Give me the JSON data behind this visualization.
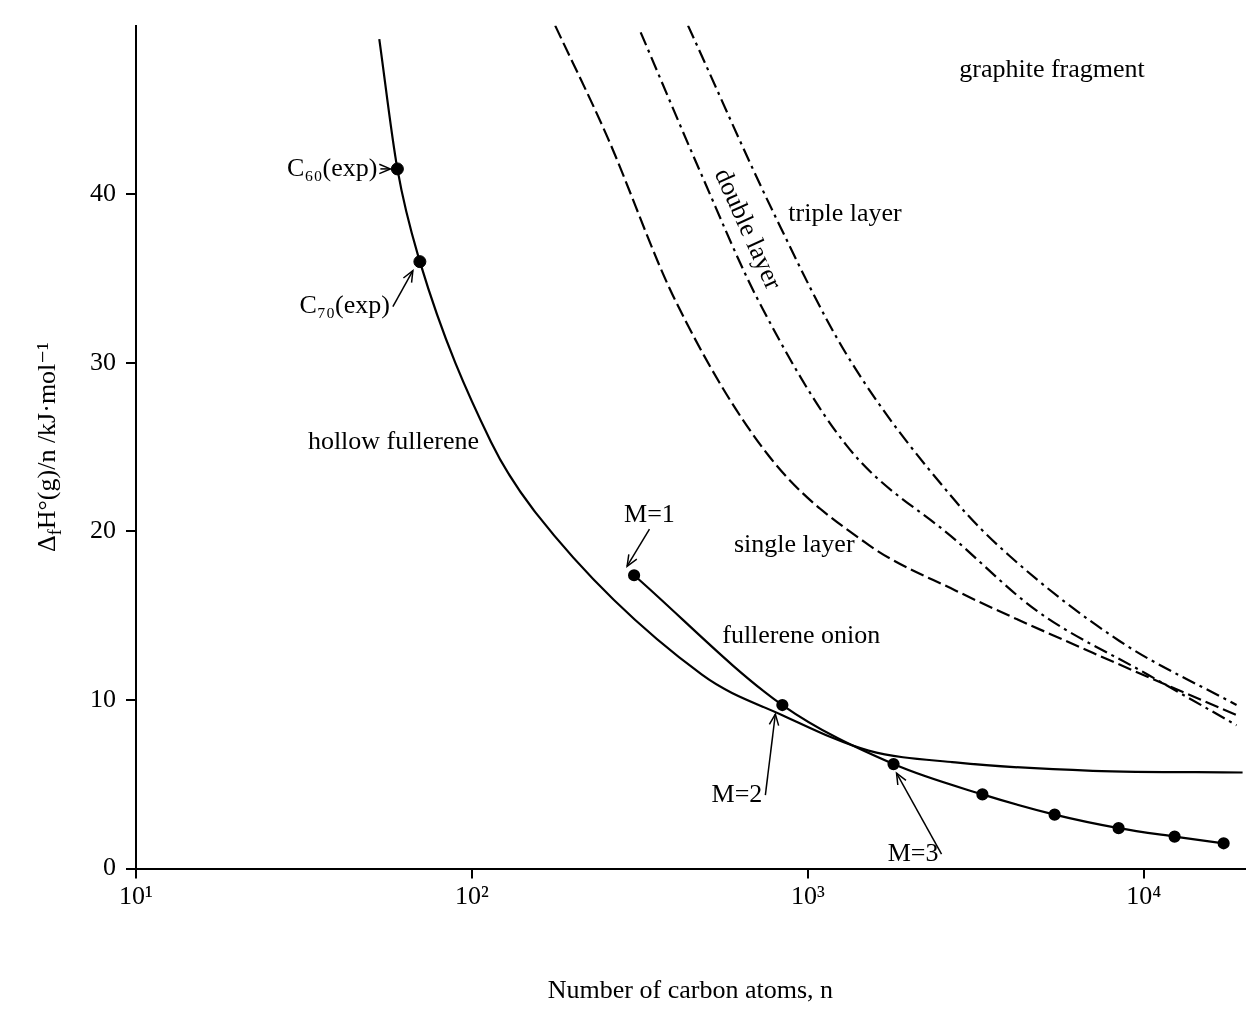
{
  "chart_data": {
    "type": "line",
    "xlabel": "Number of carbon atoms, n",
    "ylabel": "Δ$_{f}$H°(g)/n /kJ·mol⁻¹",
    "log": "x",
    "xlim": [
      10,
      20000
    ],
    "xticks": [
      {
        "value": 10,
        "label": "10¹"
      },
      {
        "value": 100,
        "label": "10²"
      },
      {
        "value": 1000,
        "label": "10³"
      },
      {
        "value": 10000,
        "label": "10⁴"
      }
    ],
    "ylim": [
      0,
      50
    ],
    "yticks": [
      0,
      10,
      20,
      30,
      40
    ],
    "grid": false,
    "legend": false,
    "series": [
      {
        "name": "hollow fullerene",
        "type": "line",
        "color": "#000000",
        "line_style": "solid",
        "marker": "none",
        "x": [
          53,
          60,
          70,
          114,
          155,
          484,
          840,
          1517,
          2750,
          7050,
          19700
        ],
        "values": [
          49.2,
          41.5,
          36.0,
          25.3,
          21.1,
          11.5,
          9.1,
          7.0,
          6.3,
          5.8,
          5.7
        ]
      },
      {
        "type": "scatter",
        "color": "#000000",
        "marker": "circle",
        "x": [
          60,
          70
        ],
        "values": [
          41.5,
          36.0
        ]
      },
      {
        "name": "fullerene onion",
        "type": "line",
        "color": "#000000",
        "line_style": "solid",
        "marker": "circle",
        "x": [
          304,
          840,
          1800,
          3310,
          5430,
          8420,
          12360,
          17300
        ],
        "values": [
          17.4,
          9.7,
          6.2,
          4.4,
          3.2,
          2.4,
          1.9,
          1.5
        ]
      },
      {
        "name": "single layer",
        "type": "line",
        "color": "#000000",
        "line_style": "dashed",
        "marker": "none",
        "x": [
          177,
          253,
          401,
          764,
          1517,
          2750,
          7050,
          18900
        ],
        "values": [
          50,
          43.4,
          33.8,
          24.5,
          19.2,
          16.5,
          12.8,
          9.1
        ]
      },
      {
        "name": "double layer",
        "type": "line",
        "color": "#000000",
        "line_style": "dashdot",
        "marker": "none",
        "x": [
          318,
          484,
          708,
          1304,
          2750,
          4800,
          10300,
          18900
        ],
        "values": [
          49.6,
          41.1,
          33.8,
          25.1,
          19.5,
          15.3,
          11.5,
          8.5
        ]
      },
      {
        "name": "triple layer",
        "type": "line",
        "color": "#000000",
        "line_style": "dashdot",
        "marker": "none",
        "x": [
          440,
          795,
          1304,
          2750,
          3960,
          8470,
          18900
        ],
        "values": [
          50,
          38.8,
          30.5,
          21.8,
          18.6,
          13.5,
          9.7
        ]
      }
    ],
    "annotations": [
      "graphite fragment",
      {
        "text": "C₆₀(exp)",
        "x": 60,
        "y": 41.5
      },
      {
        "text": "C₇₀(exp)",
        "x": 70,
        "y": 36.0
      },
      {
        "text": "M=1",
        "x": 304,
        "y": 17.4
      },
      {
        "text": "M=2",
        "x": 840,
        "y": 9.7
      },
      {
        "text": "M=3",
        "x": 1800,
        "y": 6.2
      }
    ]
  }
}
